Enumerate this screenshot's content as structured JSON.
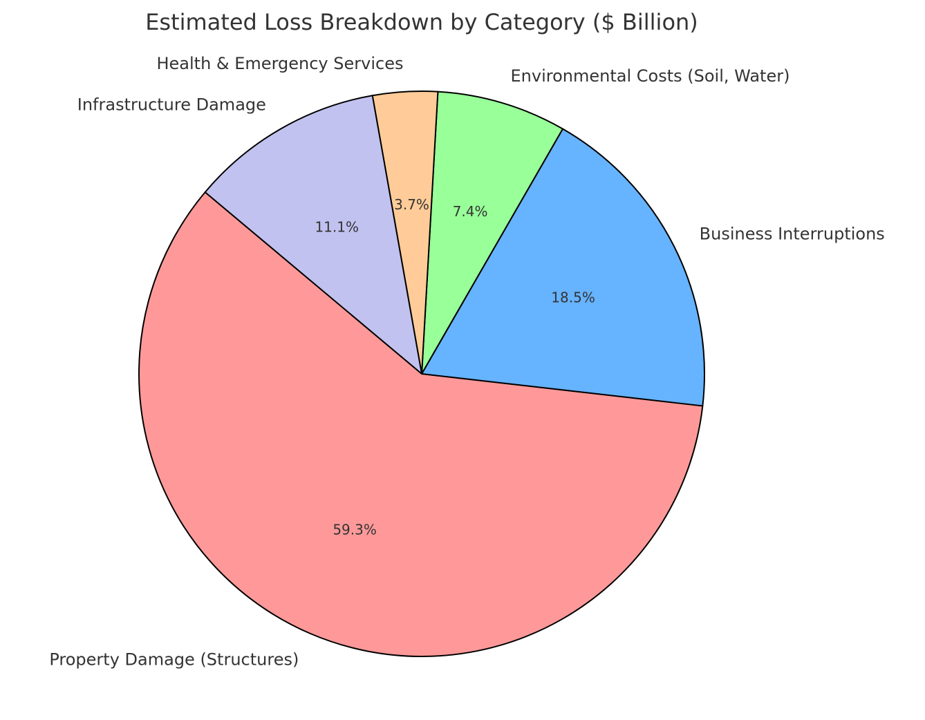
{
  "chart_data": {
    "type": "pie",
    "title": "Estimated Loss Breakdown by Category ($ Billion)",
    "categories": [
      "Property Damage (Structures)",
      "Business Interruptions",
      "Environmental Costs (Soil, Water)",
      "Health & Emergency Services",
      "Infrastructure Damage"
    ],
    "values": [
      59.3,
      18.5,
      7.4,
      3.7,
      11.1
    ],
    "percent_labels": [
      "59.3%",
      "18.5%",
      "7.4%",
      "3.7%",
      "11.1%"
    ],
    "colors": [
      "#ff9999",
      "#66b3ff",
      "#99ff99",
      "#ffcc99",
      "#c2c2f0"
    ],
    "start_angle_deg": 140,
    "direction": "counterclockwise",
    "legend": "none"
  }
}
